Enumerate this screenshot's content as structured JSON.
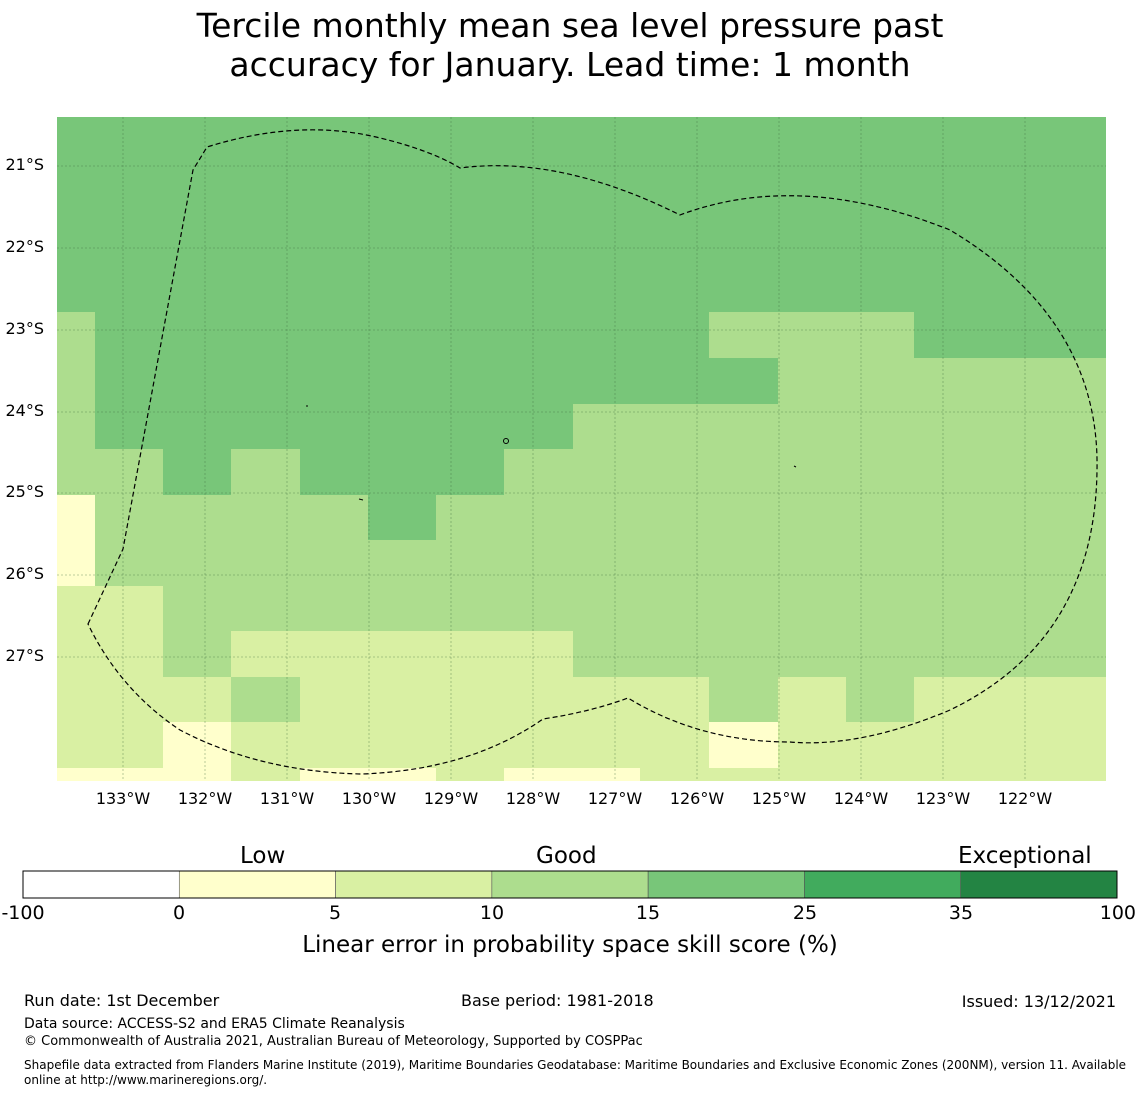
{
  "title_line1": "Tercile monthly mean sea level pressure past",
  "title_line2": "accuracy for January. Lead time: 1 month",
  "map": {
    "lat_labels": [
      "21°S",
      "22°S",
      "23°S",
      "24°S",
      "25°S",
      "26°S",
      "27°S"
    ],
    "lon_labels": [
      "133°W",
      "132°W",
      "131°W",
      "130°W",
      "129°W",
      "128°W",
      "127°W",
      "126°W",
      "125°W",
      "124°W",
      "123°W",
      "122°W"
    ],
    "colors": {
      "very_low": "#ffffcc",
      "low": "#d9f0a3",
      "good": "#addd8e",
      "very_good": "#78c679"
    }
  },
  "colorbar": {
    "categories": [
      "Low",
      "Good",
      "Exceptional"
    ],
    "ticks": [
      "-100",
      "0",
      "5",
      "10",
      "15",
      "25",
      "35",
      "100"
    ],
    "colors": [
      "#ffffff",
      "#ffffcc",
      "#d9f0a3",
      "#addd8e",
      "#78c679",
      "#41ab5d",
      "#238443"
    ],
    "title": "Linear error in probability space skill score (%)"
  },
  "footer": {
    "run_date": "Run date: 1st December",
    "base_period": "Base period: 1981-2018",
    "issued": "Issued: 13/12/2021",
    "data_source": "Data source: ACCESS-S2 and ERA5 Climate Reanalysis",
    "copyright": "© Commonwealth of Australia 2021, Australian Bureau of Meteorology, Supported by COSPPac",
    "shapefile": "Shapefile data extracted from Flanders Marine Institute (2019), Maritime Boundaries Geodatabase: Maritime Boundaries and Exclusive Economic Zones (200NM), version 11. Available online at http://www.marineregions.org/."
  }
}
